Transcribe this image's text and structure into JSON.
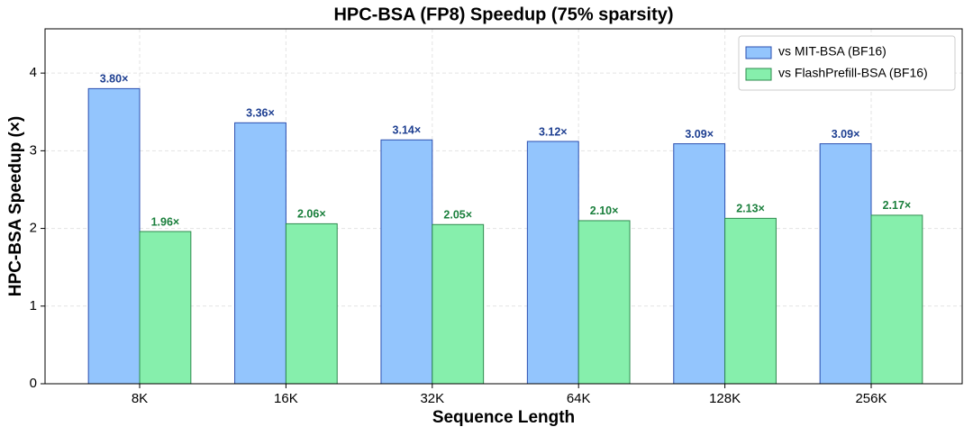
{
  "chart_data": {
    "type": "bar",
    "title": "HPC-BSA (FP8) Speedup (75% sparsity)",
    "xlabel": "Sequence Length",
    "ylabel": "HPC-BSA Speedup (×)",
    "categories": [
      "8K",
      "16K",
      "32K",
      "64K",
      "128K",
      "256K"
    ],
    "series": [
      {
        "name": "vs MIT-BSA (BF16)",
        "color": "#93c5fd",
        "edge": "#2b4fb0",
        "label_color": "#1e3f91",
        "values": [
          3.8,
          3.36,
          3.14,
          3.12,
          3.09,
          3.09
        ],
        "value_labels": [
          "3.80×",
          "3.36×",
          "3.14×",
          "3.12×",
          "3.09×",
          "3.09×"
        ]
      },
      {
        "name": "vs FlashPrefill-BSA (BF16)",
        "color": "#86efac",
        "edge": "#2e8b4e",
        "label_color": "#1a7f3c",
        "values": [
          1.96,
          2.06,
          2.05,
          2.1,
          2.13,
          2.17
        ],
        "value_labels": [
          "1.96×",
          "2.06×",
          "2.05×",
          "2.10×",
          "2.13×",
          "2.17×"
        ]
      }
    ],
    "ylim": [
      0,
      4.57
    ],
    "yticks": [
      0,
      1,
      2,
      3,
      4
    ],
    "grid": true,
    "legend": "upper right"
  }
}
